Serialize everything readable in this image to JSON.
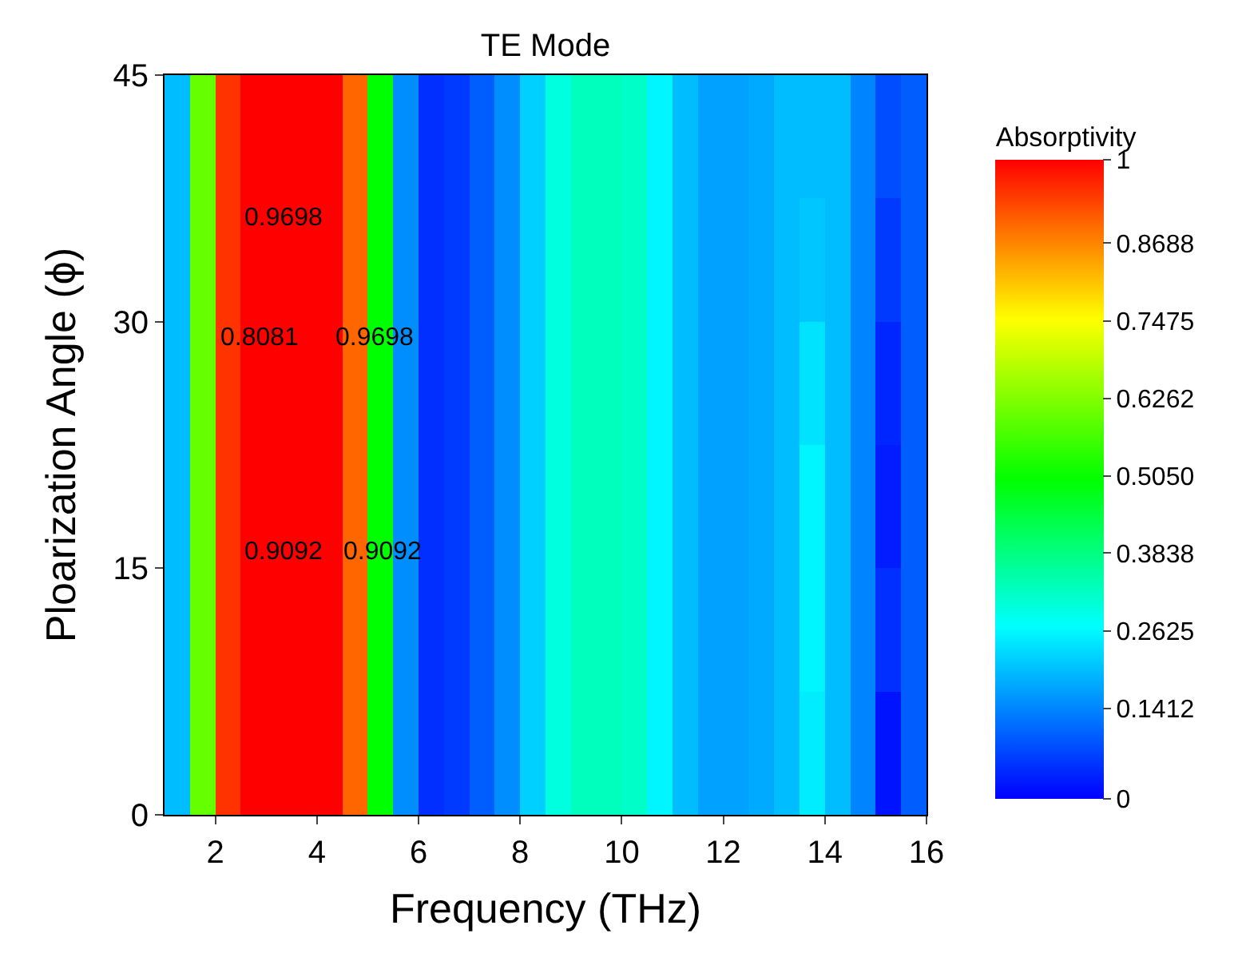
{
  "chart_data": {
    "type": "heatmap",
    "title": "TE Mode",
    "xlabel": "Frequency (THz)",
    "ylabel": "Ploarization Angle (ϕ)",
    "clabel": "Absorptivity",
    "x": [
      1.25,
      1.75,
      2.25,
      2.75,
      3.25,
      3.75,
      4.25,
      4.75,
      5.25,
      5.75,
      6.25,
      6.75,
      7.25,
      7.75,
      8.25,
      8.75,
      9.25,
      9.75,
      10.25,
      10.75,
      11.25,
      11.75,
      12.25,
      12.75,
      13.25,
      13.75,
      14.25,
      14.75,
      15.25,
      15.75
    ],
    "y": [
      41.25,
      33.75,
      26.25,
      18.75,
      11.25,
      3.75
    ],
    "cells": [
      [
        0.2,
        0.6,
        0.95,
        1,
        1,
        1,
        1,
        0.9,
        0.5,
        0.15,
        0.05,
        0.06,
        0.1,
        0.15,
        0.22,
        0.3,
        0.33,
        0.33,
        0.32,
        0.26,
        0.2,
        0.17,
        0.17,
        0.18,
        0.2,
        0.2,
        0.2,
        0.14,
        0.08,
        0.1
      ],
      [
        0.2,
        0.6,
        0.95,
        1,
        1,
        1,
        1,
        0.9,
        0.5,
        0.15,
        0.05,
        0.06,
        0.1,
        0.15,
        0.22,
        0.3,
        0.33,
        0.33,
        0.32,
        0.26,
        0.2,
        0.17,
        0.17,
        0.18,
        0.2,
        0.21,
        0.2,
        0.14,
        0.06,
        0.1
      ],
      [
        0.2,
        0.6,
        0.95,
        1,
        1,
        1,
        1,
        0.9,
        0.5,
        0.15,
        0.05,
        0.06,
        0.1,
        0.15,
        0.22,
        0.3,
        0.33,
        0.33,
        0.32,
        0.26,
        0.2,
        0.17,
        0.17,
        0.18,
        0.2,
        0.24,
        0.2,
        0.14,
        0.04,
        0.1
      ],
      [
        0.2,
        0.6,
        0.95,
        1,
        1,
        1,
        1,
        0.9,
        0.5,
        0.15,
        0.05,
        0.06,
        0.1,
        0.15,
        0.22,
        0.3,
        0.33,
        0.33,
        0.32,
        0.26,
        0.2,
        0.17,
        0.17,
        0.18,
        0.2,
        0.26,
        0.2,
        0.14,
        0.03,
        0.1
      ],
      [
        0.2,
        0.6,
        0.95,
        1,
        1,
        1,
        1,
        0.9,
        0.5,
        0.15,
        0.05,
        0.06,
        0.1,
        0.15,
        0.22,
        0.3,
        0.33,
        0.33,
        0.32,
        0.26,
        0.2,
        0.17,
        0.17,
        0.18,
        0.2,
        0.26,
        0.2,
        0.14,
        0.05,
        0.1
      ],
      [
        0.2,
        0.6,
        0.95,
        1,
        1,
        1,
        1,
        0.9,
        0.5,
        0.15,
        0.05,
        0.06,
        0.1,
        0.15,
        0.22,
        0.3,
        0.33,
        0.33,
        0.32,
        0.26,
        0.2,
        0.17,
        0.17,
        0.18,
        0.2,
        0.25,
        0.2,
        0.14,
        0.02,
        0.1
      ]
    ],
    "xlim": [
      1,
      16
    ],
    "xticks": [
      2,
      4,
      6,
      8,
      10,
      12,
      14,
      16
    ],
    "ylim": [
      0,
      45
    ],
    "yticks": [
      0,
      15,
      30,
      45
    ],
    "clim": [
      0,
      1
    ],
    "cticks": [
      0,
      {
        "value": 0.1412,
        "label": "0.1412"
      },
      {
        "value": 0.2625,
        "label": "0.2625"
      },
      {
        "value": 0.3838,
        "label": "0.3838"
      },
      {
        "value": 0.505,
        "label": "0.5050"
      },
      {
        "value": 0.6262,
        "label": "0.6262"
      },
      {
        "value": 0.7475,
        "label": "0.7475"
      },
      {
        "value": 0.8688,
        "label": "0.8688"
      },
      1
    ],
    "annotations": [
      "0.9698",
      "0.8081",
      "0.9698",
      "0.9092",
      "0.9092"
    ]
  }
}
